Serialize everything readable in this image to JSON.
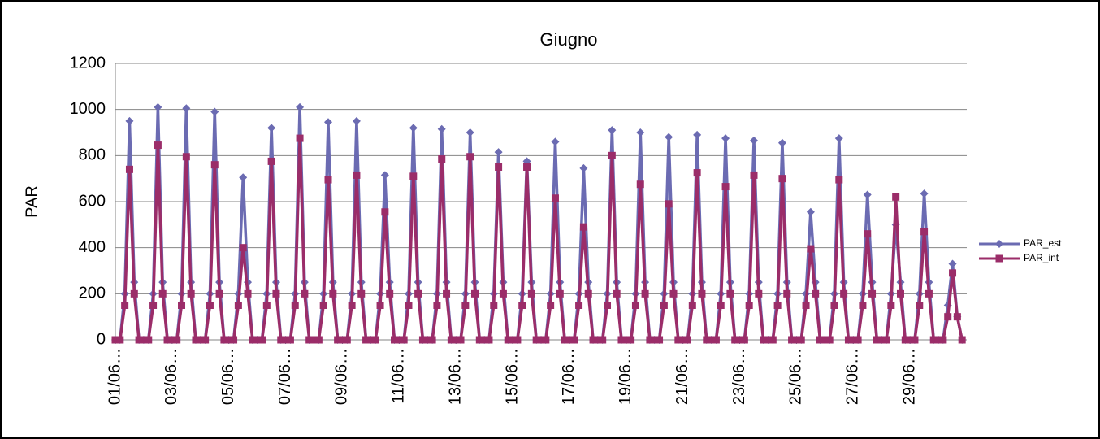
{
  "chart_data": {
    "type": "line",
    "title": "Giugno",
    "y_label": "PAR",
    "categories": [
      "01/06…",
      null,
      null,
      null,
      null,
      null,
      null,
      null,
      null,
      null,
      null,
      null,
      "03/06…",
      null,
      null,
      null,
      null,
      null,
      null,
      null,
      null,
      null,
      null,
      null,
      "05/06…",
      null,
      null,
      null,
      null,
      null,
      null,
      null,
      null,
      null,
      null,
      null,
      "07/06…",
      null,
      null,
      null,
      null,
      null,
      null,
      null,
      null,
      null,
      null,
      null,
      "09/06…",
      null,
      null,
      null,
      null,
      null,
      null,
      null,
      null,
      null,
      null,
      null,
      "11/06…",
      null,
      null,
      null,
      null,
      null,
      null,
      null,
      null,
      null,
      null,
      null,
      "13/06…",
      null,
      null,
      null,
      null,
      null,
      null,
      null,
      null,
      null,
      null,
      null,
      "15/06…",
      null,
      null,
      null,
      null,
      null,
      null,
      null,
      null,
      null,
      null,
      null,
      "17/06…",
      null,
      null,
      null,
      null,
      null,
      null,
      null,
      null,
      null,
      null,
      null,
      "19/06…",
      null,
      null,
      null,
      null,
      null,
      null,
      null,
      null,
      null,
      null,
      null,
      "21/06…",
      null,
      null,
      null,
      null,
      null,
      null,
      null,
      null,
      null,
      null,
      null,
      "23/06…",
      null,
      null,
      null,
      null,
      null,
      null,
      null,
      null,
      null,
      null,
      null,
      "25/06…",
      null,
      null,
      null,
      null,
      null,
      null,
      null,
      null,
      null,
      null,
      null,
      "27/06…",
      null,
      null,
      null,
      null,
      null,
      null,
      null,
      null,
      null,
      null,
      null,
      "29/06…",
      null,
      null,
      null,
      null,
      null,
      null,
      null,
      null,
      null,
      null,
      null
    ],
    "series": [
      {
        "name": "PAR_est",
        "color": "#6b6bb2",
        "marker": "diamond",
        "values": [
          0,
          0,
          200,
          950,
          250,
          0,
          0,
          0,
          200,
          1010,
          250,
          0,
          0,
          0,
          200,
          1005,
          250,
          0,
          0,
          0,
          200,
          990,
          250,
          0,
          0,
          0,
          200,
          705,
          250,
          0,
          0,
          0,
          200,
          920,
          250,
          0,
          0,
          0,
          200,
          1010,
          250,
          0,
          0,
          0,
          200,
          945,
          250,
          0,
          0,
          0,
          200,
          950,
          250,
          0,
          0,
          0,
          200,
          715,
          250,
          0,
          0,
          0,
          200,
          920,
          250,
          0,
          0,
          0,
          200,
          915,
          250,
          0,
          0,
          0,
          200,
          900,
          250,
          0,
          0,
          0,
          200,
          815,
          250,
          0,
          0,
          0,
          200,
          775,
          250,
          0,
          0,
          0,
          200,
          860,
          250,
          0,
          0,
          0,
          200,
          745,
          250,
          0,
          0,
          0,
          200,
          910,
          250,
          0,
          0,
          0,
          200,
          900,
          250,
          0,
          0,
          0,
          200,
          880,
          250,
          0,
          0,
          0,
          200,
          890,
          250,
          0,
          0,
          0,
          200,
          875,
          250,
          0,
          0,
          0,
          200,
          865,
          250,
          0,
          0,
          0,
          200,
          855,
          250,
          0,
          0,
          0,
          200,
          555,
          250,
          0,
          0,
          0,
          200,
          875,
          250,
          0,
          0,
          0,
          200,
          630,
          250,
          0,
          0,
          0,
          200,
          500,
          250,
          0,
          0,
          0,
          200,
          635,
          250,
          0,
          0,
          0,
          150,
          330,
          100,
          0
        ]
      },
      {
        "name": "PAR_int",
        "color": "#9b2d69",
        "marker": "square",
        "values": [
          0,
          0,
          150,
          740,
          200,
          0,
          0,
          0,
          150,
          845,
          200,
          0,
          0,
          0,
          150,
          795,
          200,
          0,
          0,
          0,
          150,
          760,
          200,
          0,
          0,
          0,
          150,
          400,
          200,
          0,
          0,
          0,
          150,
          775,
          200,
          0,
          0,
          0,
          150,
          875,
          200,
          0,
          0,
          0,
          150,
          695,
          200,
          0,
          0,
          0,
          150,
          715,
          200,
          0,
          0,
          0,
          150,
          555,
          200,
          0,
          0,
          0,
          150,
          710,
          200,
          0,
          0,
          0,
          150,
          785,
          200,
          0,
          0,
          0,
          150,
          795,
          200,
          0,
          0,
          0,
          150,
          750,
          200,
          0,
          0,
          0,
          150,
          750,
          200,
          0,
          0,
          0,
          150,
          615,
          200,
          0,
          0,
          0,
          150,
          490,
          200,
          0,
          0,
          0,
          150,
          800,
          200,
          0,
          0,
          0,
          150,
          675,
          200,
          0,
          0,
          0,
          150,
          590,
          200,
          0,
          0,
          0,
          150,
          725,
          200,
          0,
          0,
          0,
          150,
          665,
          200,
          0,
          0,
          0,
          150,
          715,
          200,
          0,
          0,
          0,
          150,
          700,
          200,
          0,
          0,
          0,
          150,
          395,
          200,
          0,
          0,
          0,
          150,
          695,
          200,
          0,
          0,
          0,
          150,
          460,
          200,
          0,
          0,
          0,
          150,
          620,
          200,
          0,
          0,
          0,
          150,
          470,
          200,
          0,
          0,
          0,
          100,
          290,
          100,
          0
        ]
      }
    ],
    "ylim": [
      0,
      1200
    ],
    "yticks": [
      0,
      200,
      400,
      600,
      800,
      1000,
      1200
    ],
    "grid": true,
    "legend": "right"
  }
}
